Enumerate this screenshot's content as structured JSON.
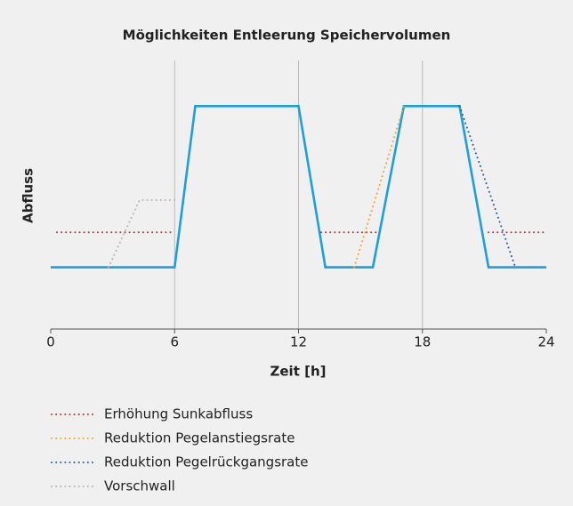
{
  "chart_data": {
    "type": "line",
    "title": "Möglichkeiten Entleerung Speichervolumen",
    "x_label": "Zeit [h]",
    "y_label": "Abfluss",
    "xlim": [
      0,
      24
    ],
    "xticks": [
      0,
      6,
      12,
      18,
      24
    ],
    "ylim": [
      0,
      10
    ],
    "grid": true,
    "series": [
      {
        "color": "#1aa0dc",
        "style": "solid",
        "x": [
          0,
          6,
          7,
          12,
          13.3,
          15.6,
          17.1,
          19.8,
          21.2,
          24
        ],
        "values": [
          2.3,
          2.3,
          8.3,
          8.3,
          2.3,
          2.3,
          8.3,
          8.3,
          2.3,
          2.3
        ]
      },
      {
        "name": "Erhöhung Sunkabfluss",
        "color": "#b03a3a",
        "style": "dotted",
        "x": [
          0.3,
          6,
          null,
          13.1,
          15.9,
          null,
          21.2,
          24
        ],
        "values": [
          3.6,
          3.6,
          null,
          3.6,
          3.6,
          null,
          3.6,
          3.6
        ]
      },
      {
        "name": "Reduktion Pegelanstiegsrate",
        "color": "#f5a623",
        "style": "dotted",
        "x": [
          14.7,
          17.1
        ],
        "values": [
          2.3,
          8.3
        ]
      },
      {
        "name": "Reduktion Pegelrückgangsrate",
        "color": "#2b5f9e",
        "style": "dotted",
        "x": [
          19.8,
          22.5
        ],
        "values": [
          8.3,
          2.3
        ]
      },
      {
        "name": "Vorschwall",
        "color": "#b5b5b5",
        "style": "dotted",
        "x": [
          2.8,
          4.3,
          6.2
        ],
        "values": [
          2.3,
          4.8,
          4.8
        ]
      }
    ]
  }
}
